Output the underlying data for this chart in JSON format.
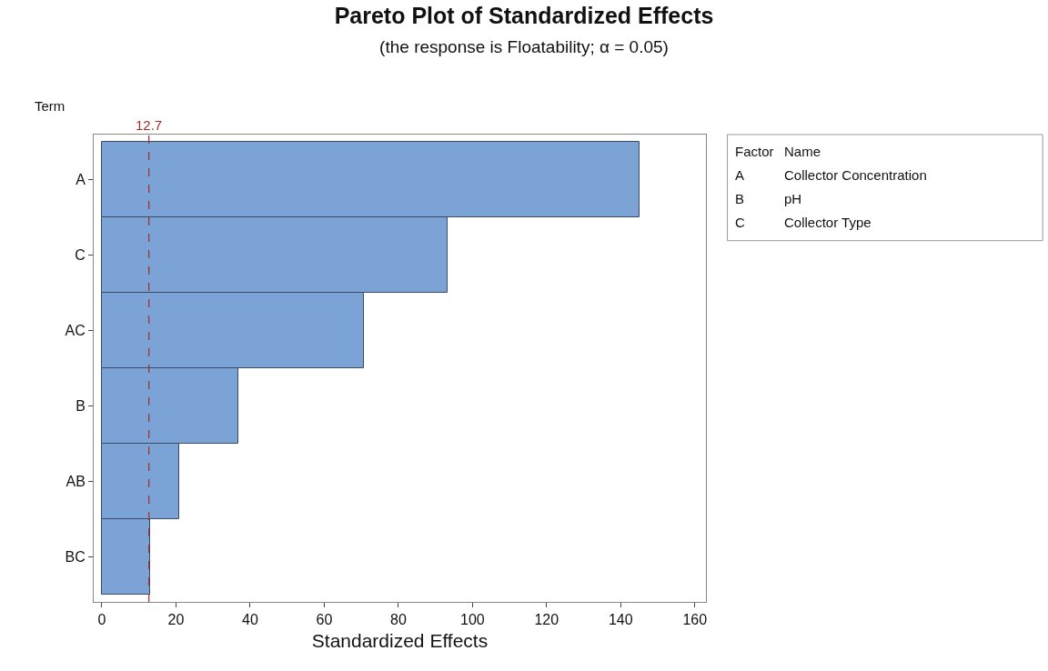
{
  "chart_data": {
    "type": "bar",
    "orientation": "horizontal",
    "title": "Pareto Plot of Standardized Effects",
    "subtitle": "(the response is Floatability; α = 0.05)",
    "xlabel": "Standardized Effects",
    "ylabel": "Term",
    "categories": [
      "A",
      "C",
      "AC",
      "B",
      "AB",
      "BC"
    ],
    "values": [
      145.0,
      93.3,
      70.7,
      36.8,
      20.9,
      13.0
    ],
    "color": "#7ba3d6",
    "xlim": [
      -2.2,
      163
    ],
    "xticks": [
      0,
      20,
      40,
      60,
      80,
      100,
      120,
      140,
      160
    ],
    "ref_lines": [
      {
        "axis": "x",
        "value": 12.7,
        "label": "12.7",
        "color": "#a52a2a",
        "line_style": "dashed"
      }
    ],
    "grid": false,
    "annotations": [
      "Factor",
      "Name",
      "A",
      "Collector Concentration",
      "B",
      "pH",
      "C",
      "Collector Type"
    ]
  }
}
